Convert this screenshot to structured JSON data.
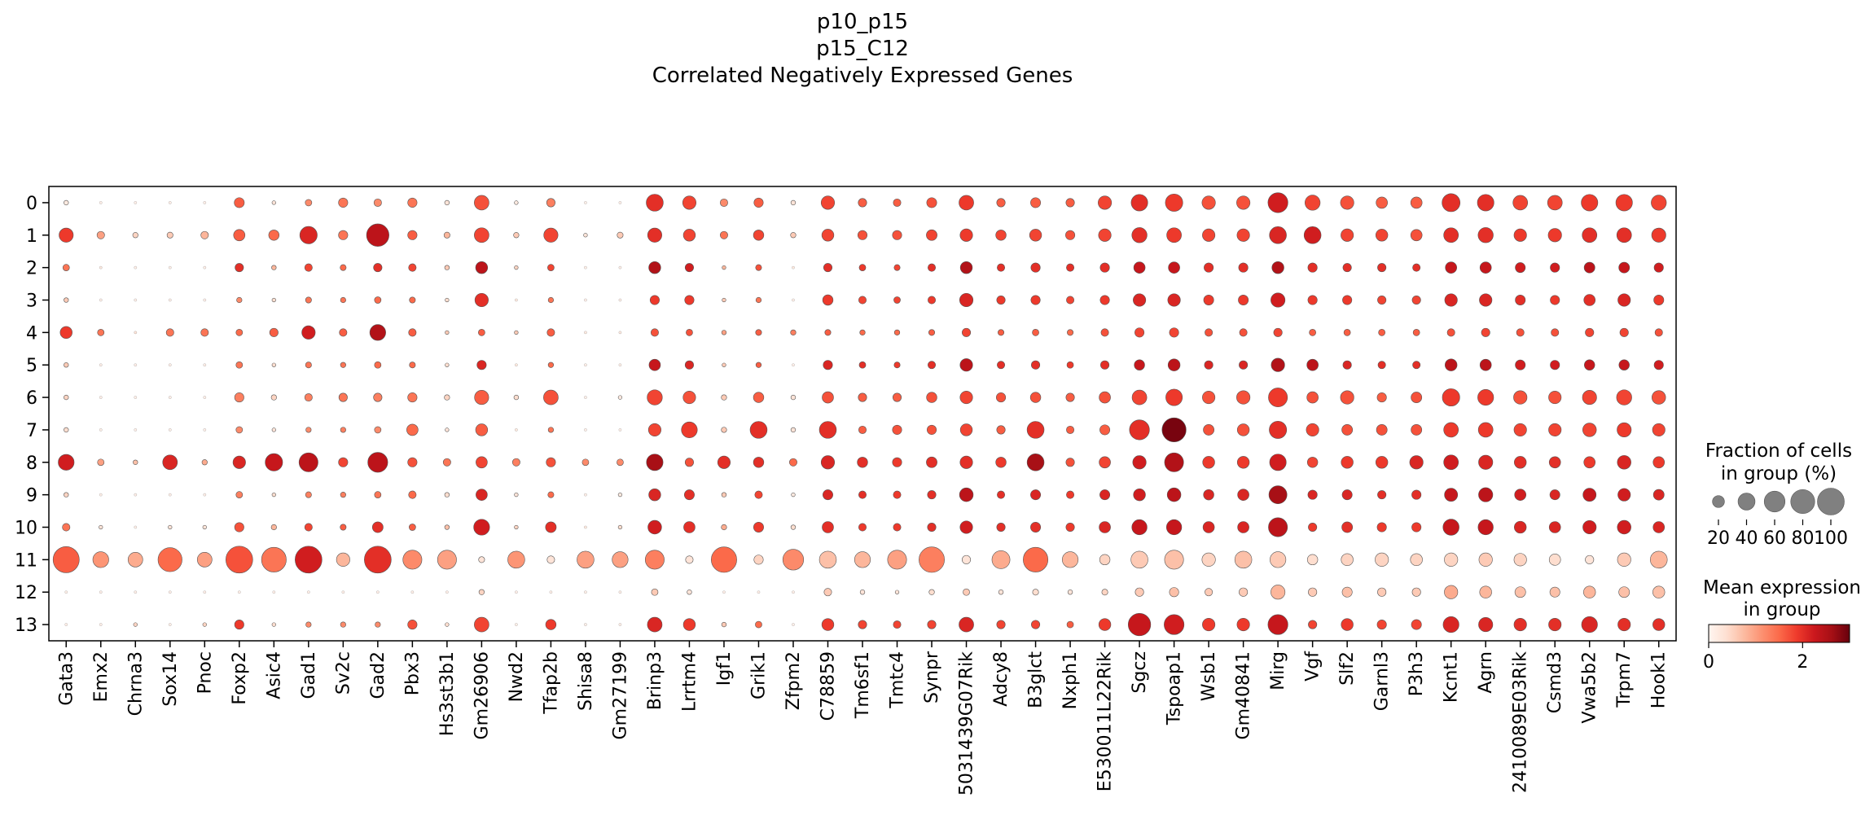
{
  "chart_data": {
    "type": "dotplot",
    "title": [
      "p10_p15",
      "p15_C12",
      "Correlated Negatively Expressed Genes"
    ],
    "xlabel": "",
    "ylabel": "",
    "genes": [
      "Gata3",
      "Emx2",
      "Chrna3",
      "Sox14",
      "Pnoc",
      "Foxp2",
      "Asic4",
      "Gad1",
      "Sv2c",
      "Gad2",
      "Pbx3",
      "Hs3st3b1",
      "Gm26906",
      "Nwd2",
      "Tfap2b",
      "Shisa8",
      "Gm27199",
      "Brinp3",
      "Lrrtm4",
      "Igf1",
      "Grik1",
      "Zfpm2",
      "C78859",
      "Tm6sf1",
      "Tmtc4",
      "Synpr",
      "5031439G07Rik",
      "Adcy8",
      "B3glct",
      "Nxph1",
      "E530011L22Rik",
      "Sgcz",
      "Tspoap1",
      "Wsb1",
      "Gm40841",
      "Mirg",
      "Vgf",
      "Slf2",
      "Garnl3",
      "P3h3",
      "Kcnt1",
      "Agrn",
      "2410089E03Rik",
      "Csmd3",
      "Vwa5b2",
      "Trpm7",
      "Hook1"
    ],
    "groups": [
      "0",
      "1",
      "2",
      "3",
      "4",
      "5",
      "6",
      "7",
      "8",
      "9",
      "10",
      "11",
      "12",
      "13"
    ],
    "fraction_pct": [
      [
        3,
        1,
        1,
        1,
        1,
        14,
        2,
        6,
        12,
        8,
        12,
        3,
        30,
        2,
        10,
        1,
        1,
        40,
        25,
        8,
        12,
        3,
        25,
        10,
        8,
        14,
        30,
        10,
        14,
        10,
        25,
        38,
        42,
        25,
        25,
        55,
        32,
        25,
        18,
        18,
        45,
        38,
        30,
        30,
        38,
        38,
        32
      ],
      [
        28,
        8,
        4,
        5,
        8,
        18,
        15,
        42,
        12,
        70,
        12,
        5,
        30,
        4,
        28,
        2,
        5,
        28,
        20,
        8,
        15,
        4,
        20,
        12,
        12,
        16,
        22,
        15,
        20,
        12,
        22,
        32,
        30,
        22,
        22,
        40,
        40,
        22,
        20,
        18,
        30,
        32,
        22,
        25,
        30,
        30,
        28
      ],
      [
        6,
        1,
        1,
        1,
        1,
        10,
        3,
        8,
        5,
        10,
        8,
        3,
        20,
        2,
        6,
        1,
        1,
        20,
        10,
        2,
        5,
        1,
        10,
        6,
        5,
        8,
        20,
        8,
        12,
        8,
        12,
        18,
        18,
        12,
        12,
        20,
        12,
        10,
        10,
        8,
        18,
        18,
        14,
        12,
        16,
        16,
        12
      ],
      [
        3,
        1,
        1,
        1,
        1,
        4,
        2,
        5,
        4,
        6,
        5,
        2,
        25,
        1,
        4,
        1,
        1,
        12,
        12,
        2,
        4,
        1,
        15,
        8,
        6,
        8,
        25,
        10,
        12,
        8,
        12,
        22,
        22,
        14,
        14,
        28,
        12,
        12,
        10,
        10,
        22,
        22,
        14,
        12,
        18,
        22,
        14
      ],
      [
        20,
        6,
        1,
        8,
        8,
        6,
        10,
        25,
        8,
        35,
        8,
        2,
        6,
        2,
        8,
        1,
        1,
        8,
        6,
        3,
        5,
        4,
        5,
        4,
        4,
        5,
        10,
        5,
        6,
        5,
        8,
        12,
        12,
        8,
        8,
        10,
        6,
        6,
        6,
        6,
        8,
        10,
        8,
        8,
        10,
        10,
        8
      ],
      [
        3,
        1,
        1,
        1,
        1,
        6,
        2,
        5,
        4,
        6,
        5,
        2,
        12,
        1,
        4,
        1,
        1,
        18,
        10,
        2,
        4,
        1,
        12,
        6,
        5,
        8,
        22,
        8,
        10,
        6,
        10,
        15,
        20,
        10,
        10,
        25,
        18,
        10,
        8,
        8,
        20,
        18,
        14,
        12,
        15,
        15,
        12
      ],
      [
        3,
        1,
        1,
        1,
        1,
        12,
        4,
        8,
        10,
        10,
        12,
        4,
        28,
        3,
        30,
        1,
        2,
        32,
        22,
        4,
        15,
        3,
        18,
        10,
        10,
        15,
        22,
        12,
        15,
        10,
        18,
        30,
        38,
        22,
        25,
        50,
        18,
        25,
        12,
        16,
        42,
        35,
        25,
        22,
        28,
        32,
        26
      ],
      [
        3,
        1,
        1,
        1,
        1,
        6,
        2,
        4,
        4,
        6,
        18,
        2,
        20,
        1,
        4,
        1,
        1,
        22,
        35,
        4,
        40,
        3,
        40,
        8,
        12,
        12,
        20,
        10,
        40,
        8,
        14,
        55,
        80,
        16,
        20,
        42,
        22,
        16,
        16,
        16,
        30,
        30,
        22,
        22,
        26,
        28,
        22
      ],
      [
        35,
        6,
        3,
        30,
        4,
        22,
        42,
        50,
        12,
        55,
        12,
        8,
        18,
        8,
        12,
        6,
        6,
        38,
        10,
        22,
        15,
        8,
        25,
        15,
        12,
        16,
        22,
        15,
        40,
        10,
        18,
        25,
        50,
        20,
        20,
        38,
        15,
        20,
        20,
        25,
        30,
        28,
        20,
        18,
        18,
        26,
        18
      ],
      [
        3,
        1,
        1,
        1,
        1,
        6,
        2,
        5,
        4,
        6,
        8,
        3,
        18,
        2,
        5,
        1,
        2,
        20,
        14,
        3,
        8,
        2,
        14,
        8,
        8,
        10,
        26,
        8,
        14,
        8,
        14,
        20,
        26,
        15,
        18,
        45,
        12,
        14,
        10,
        12,
        24,
        28,
        18,
        14,
        24,
        22,
        16
      ],
      [
        8,
        2,
        1,
        2,
        2,
        12,
        4,
        8,
        5,
        16,
        6,
        3,
        35,
        2,
        16,
        1,
        2,
        26,
        18,
        4,
        14,
        3,
        18,
        8,
        8,
        10,
        22,
        10,
        14,
        10,
        18,
        32,
        32,
        18,
        18,
        50,
        10,
        16,
        12,
        12,
        36,
        32,
        20,
        18,
        25,
        26,
        18
      ],
      [
        95,
        35,
        30,
        80,
        30,
        100,
        85,
        100,
        25,
        100,
        50,
        50,
        5,
        40,
        8,
        40,
        35,
        50,
        8,
        90,
        12,
        60,
        40,
        35,
        50,
        90,
        10,
        45,
        85,
        35,
        15,
        40,
        50,
        25,
        40,
        35,
        15,
        20,
        25,
        20,
        25,
        25,
        22,
        18,
        10,
        25,
        40
      ],
      [
        1,
        1,
        1,
        1,
        1,
        1,
        1,
        1,
        1,
        1,
        1,
        1,
        4,
        1,
        1,
        1,
        1,
        6,
        3,
        1,
        1,
        1,
        8,
        3,
        2,
        4,
        6,
        3,
        5,
        3,
        5,
        10,
        12,
        8,
        10,
        28,
        10,
        14,
        10,
        10,
        25,
        20,
        16,
        14,
        20,
        16,
        20
      ],
      [
        1,
        1,
        2,
        1,
        2,
        12,
        2,
        4,
        4,
        4,
        12,
        2,
        30,
        1,
        15,
        1,
        1,
        30,
        20,
        3,
        6,
        1,
        20,
        10,
        8,
        10,
        30,
        10,
        10,
        6,
        20,
        70,
        55,
        22,
        22,
        55,
        10,
        20,
        12,
        14,
        35,
        28,
        22,
        22,
        35,
        22,
        20
      ]
    ],
    "mean_expression": [
      [
        0.2,
        0.1,
        0.1,
        0.1,
        0.1,
        1.6,
        0.3,
        1.2,
        1.4,
        1.2,
        1.4,
        0.3,
        1.7,
        0.2,
        1.3,
        0.1,
        0.1,
        2.0,
        1.8,
        1.2,
        1.6,
        0.3,
        1.8,
        1.6,
        1.6,
        1.7,
        1.9,
        1.6,
        1.6,
        1.6,
        1.8,
        2.0,
        1.9,
        1.7,
        1.7,
        2.2,
        1.8,
        1.7,
        1.6,
        1.6,
        2.0,
        2.0,
        1.8,
        1.8,
        1.9,
        1.9,
        1.8
      ],
      [
        1.9,
        1.0,
        0.5,
        0.6,
        0.8,
        1.6,
        1.5,
        2.1,
        1.4,
        2.4,
        1.6,
        0.8,
        1.8,
        0.6,
        1.8,
        0.3,
        0.6,
        2.0,
        1.8,
        1.4,
        1.8,
        0.6,
        1.8,
        1.7,
        1.7,
        1.8,
        1.9,
        1.8,
        1.8,
        1.7,
        1.8,
        2.0,
        1.9,
        1.8,
        1.8,
        2.1,
        2.2,
        1.8,
        1.8,
        1.7,
        2.0,
        2.0,
        1.9,
        1.9,
        2.0,
        2.0,
        1.9
      ],
      [
        1.4,
        0.2,
        0.1,
        0.1,
        0.1,
        2.0,
        0.8,
        1.8,
        1.5,
        2.0,
        1.8,
        0.6,
        2.4,
        0.5,
        1.8,
        0.1,
        0.1,
        2.5,
        2.2,
        0.8,
        1.7,
        0.2,
        2.0,
        1.9,
        1.8,
        2.0,
        2.5,
        2.0,
        2.0,
        2.0,
        2.0,
        2.3,
        2.3,
        2.0,
        2.0,
        2.5,
        2.0,
        2.0,
        2.0,
        2.0,
        2.3,
        2.3,
        2.2,
        2.2,
        2.4,
        2.3,
        2.2
      ],
      [
        0.6,
        0.1,
        0.1,
        0.1,
        0.1,
        1.2,
        0.4,
        1.4,
        1.4,
        1.5,
        1.5,
        0.4,
        2.0,
        0.2,
        1.4,
        0.1,
        0.1,
        1.9,
        1.9,
        0.6,
        1.4,
        0.1,
        1.9,
        1.8,
        1.8,
        1.9,
        2.1,
        1.9,
        1.9,
        1.8,
        1.9,
        2.1,
        2.1,
        1.9,
        1.9,
        2.2,
        1.9,
        1.9,
        1.8,
        1.8,
        2.1,
        2.1,
        2.0,
        1.9,
        2.0,
        2.1,
        1.9
      ],
      [
        1.9,
        1.4,
        0.3,
        1.4,
        1.4,
        1.5,
        1.6,
        2.2,
        1.6,
        2.5,
        1.6,
        0.6,
        1.6,
        0.6,
        1.6,
        0.2,
        0.2,
        1.7,
        1.7,
        1.0,
        1.6,
        1.3,
        1.6,
        1.5,
        1.5,
        1.6,
        1.8,
        1.6,
        1.6,
        1.5,
        1.7,
        1.8,
        1.8,
        1.7,
        1.7,
        1.8,
        1.6,
        1.6,
        1.6,
        1.6,
        1.7,
        1.8,
        1.7,
        1.7,
        1.8,
        1.8,
        1.7
      ],
      [
        0.6,
        0.1,
        0.1,
        0.1,
        0.1,
        1.4,
        0.4,
        1.4,
        1.4,
        1.5,
        1.5,
        0.4,
        2.1,
        0.2,
        1.5,
        0.1,
        0.1,
        2.3,
        2.1,
        0.6,
        1.6,
        0.1,
        2.1,
        2.0,
        1.9,
        2.0,
        2.4,
        2.0,
        2.0,
        1.9,
        2.0,
        2.3,
        2.4,
        2.1,
        2.1,
        2.5,
        2.4,
        2.1,
        2.0,
        2.0,
        2.4,
        2.4,
        2.2,
        2.2,
        2.3,
        2.3,
        2.2
      ],
      [
        0.5,
        0.1,
        0.1,
        0.1,
        0.1,
        1.3,
        0.5,
        1.3,
        1.4,
        1.3,
        1.4,
        0.5,
        1.6,
        0.4,
        1.7,
        0.1,
        0.2,
        1.8,
        1.7,
        0.6,
        1.6,
        0.3,
        1.7,
        1.6,
        1.6,
        1.7,
        1.8,
        1.7,
        1.7,
        1.6,
        1.7,
        1.8,
        1.9,
        1.7,
        1.7,
        1.9,
        1.7,
        1.7,
        1.6,
        1.7,
        1.9,
        1.9,
        1.7,
        1.7,
        1.8,
        1.8,
        1.7
      ],
      [
        0.4,
        0.1,
        0.1,
        0.1,
        0.1,
        1.2,
        0.3,
        1.2,
        1.3,
        1.2,
        1.5,
        0.3,
        1.6,
        0.2,
        1.4,
        0.1,
        0.1,
        1.8,
        1.9,
        0.6,
        2.0,
        0.3,
        2.0,
        1.6,
        1.7,
        1.7,
        1.8,
        1.6,
        2.0,
        1.6,
        1.6,
        2.0,
        2.9,
        1.7,
        1.7,
        2.0,
        1.8,
        1.7,
        1.7,
        1.7,
        1.9,
        1.9,
        1.8,
        1.8,
        1.8,
        1.9,
        1.8
      ],
      [
        2.2,
        1.0,
        0.7,
        2.1,
        0.9,
        2.1,
        2.3,
        2.4,
        1.8,
        2.4,
        1.7,
        1.4,
        1.8,
        1.3,
        1.7,
        1.2,
        1.2,
        2.6,
        1.7,
        2.0,
        2.0,
        1.5,
        2.1,
        2.0,
        1.9,
        2.0,
        2.0,
        1.9,
        2.6,
        1.7,
        1.8,
        2.2,
        2.5,
        1.9,
        1.9,
        2.2,
        1.8,
        1.9,
        1.9,
        2.1,
        2.2,
        2.1,
        2.0,
        2.0,
        1.9,
        2.1,
        1.9
      ],
      [
        0.5,
        0.1,
        0.1,
        0.1,
        0.1,
        1.3,
        0.4,
        1.3,
        1.3,
        1.4,
        1.5,
        0.4,
        2.1,
        0.3,
        1.5,
        0.1,
        0.2,
        2.1,
        2.0,
        0.6,
        1.8,
        0.2,
        2.1,
        2.0,
        1.9,
        2.0,
        2.4,
        2.0,
        2.1,
        1.9,
        2.1,
        2.2,
        2.4,
        2.1,
        2.1,
        2.6,
        2.1,
        2.1,
        2.0,
        2.0,
        2.3,
        2.4,
        2.2,
        2.1,
        2.3,
        2.2,
        2.1
      ],
      [
        1.4,
        0.3,
        0.1,
        0.3,
        0.3,
        1.7,
        0.8,
        1.8,
        1.6,
        2.0,
        1.6,
        0.7,
        2.2,
        0.5,
        2.0,
        0.2,
        0.4,
        2.2,
        2.0,
        0.9,
        1.9,
        0.4,
        2.0,
        1.9,
        1.9,
        2.0,
        2.2,
        2.0,
        2.0,
        1.9,
        2.1,
        2.3,
        2.3,
        2.1,
        2.1,
        2.4,
        1.9,
        2.0,
        1.9,
        1.9,
        2.3,
        2.3,
        2.1,
        2.1,
        2.2,
        2.2,
        2.1
      ],
      [
        1.6,
        1.1,
        0.9,
        1.5,
        1.0,
        1.7,
        1.4,
        2.2,
        0.8,
        2.0,
        1.2,
        1.0,
        0.3,
        1.1,
        0.3,
        1.0,
        1.0,
        1.3,
        0.3,
        1.5,
        0.5,
        1.2,
        0.7,
        0.8,
        1.0,
        1.3,
        0.3,
        0.9,
        1.5,
        0.8,
        0.5,
        0.6,
        0.7,
        0.5,
        0.7,
        0.6,
        0.4,
        0.5,
        0.5,
        0.5,
        0.5,
        0.6,
        0.5,
        0.4,
        0.3,
        0.6,
        0.8
      ],
      [
        0.1,
        0.1,
        0.1,
        0.1,
        0.1,
        0.1,
        0.1,
        0.1,
        0.1,
        0.1,
        0.1,
        0.1,
        0.5,
        0.1,
        0.1,
        0.1,
        0.1,
        0.6,
        0.3,
        0.1,
        0.1,
        0.1,
        0.6,
        0.3,
        0.3,
        0.4,
        0.6,
        0.3,
        0.4,
        0.3,
        0.5,
        0.6,
        0.7,
        0.6,
        0.6,
        0.8,
        0.6,
        0.7,
        0.6,
        0.6,
        0.9,
        0.8,
        0.7,
        0.7,
        0.8,
        0.7,
        0.7
      ],
      [
        0.1,
        0.1,
        0.5,
        0.1,
        0.5,
        1.9,
        0.4,
        1.2,
        1.2,
        1.2,
        1.7,
        0.4,
        1.8,
        0.1,
        1.9,
        0.1,
        0.1,
        2.1,
        1.9,
        0.6,
        1.5,
        0.1,
        1.9,
        1.8,
        1.8,
        1.8,
        2.1,
        1.8,
        1.8,
        1.6,
        1.9,
        2.3,
        2.2,
        1.9,
        1.9,
        2.3,
        1.8,
        1.9,
        1.8,
        1.8,
        2.1,
        2.1,
        2.0,
        2.0,
        2.1,
        2.0,
        2.0
      ]
    ],
    "size_legend": {
      "title": [
        "Fraction of cells",
        "in group (%)"
      ],
      "values": [
        20,
        40,
        60,
        80,
        100
      ],
      "labels": [
        "20",
        "40",
        "60",
        "80",
        "100"
      ]
    },
    "color_legend": {
      "title": [
        "Mean expression",
        "in group"
      ],
      "vmin": 0,
      "vmax": 3,
      "ticks": [
        0,
        2
      ],
      "labels": [
        "0",
        "2"
      ],
      "colormap": "Reds",
      "stops": [
        "#fff5f0",
        "#fee0d2",
        "#fcbba1",
        "#fc9272",
        "#fb6a4a",
        "#ef3b2c",
        "#cb181d",
        "#a50f15",
        "#67000d"
      ]
    },
    "grid": false,
    "dot_edge_color": "#555555"
  }
}
